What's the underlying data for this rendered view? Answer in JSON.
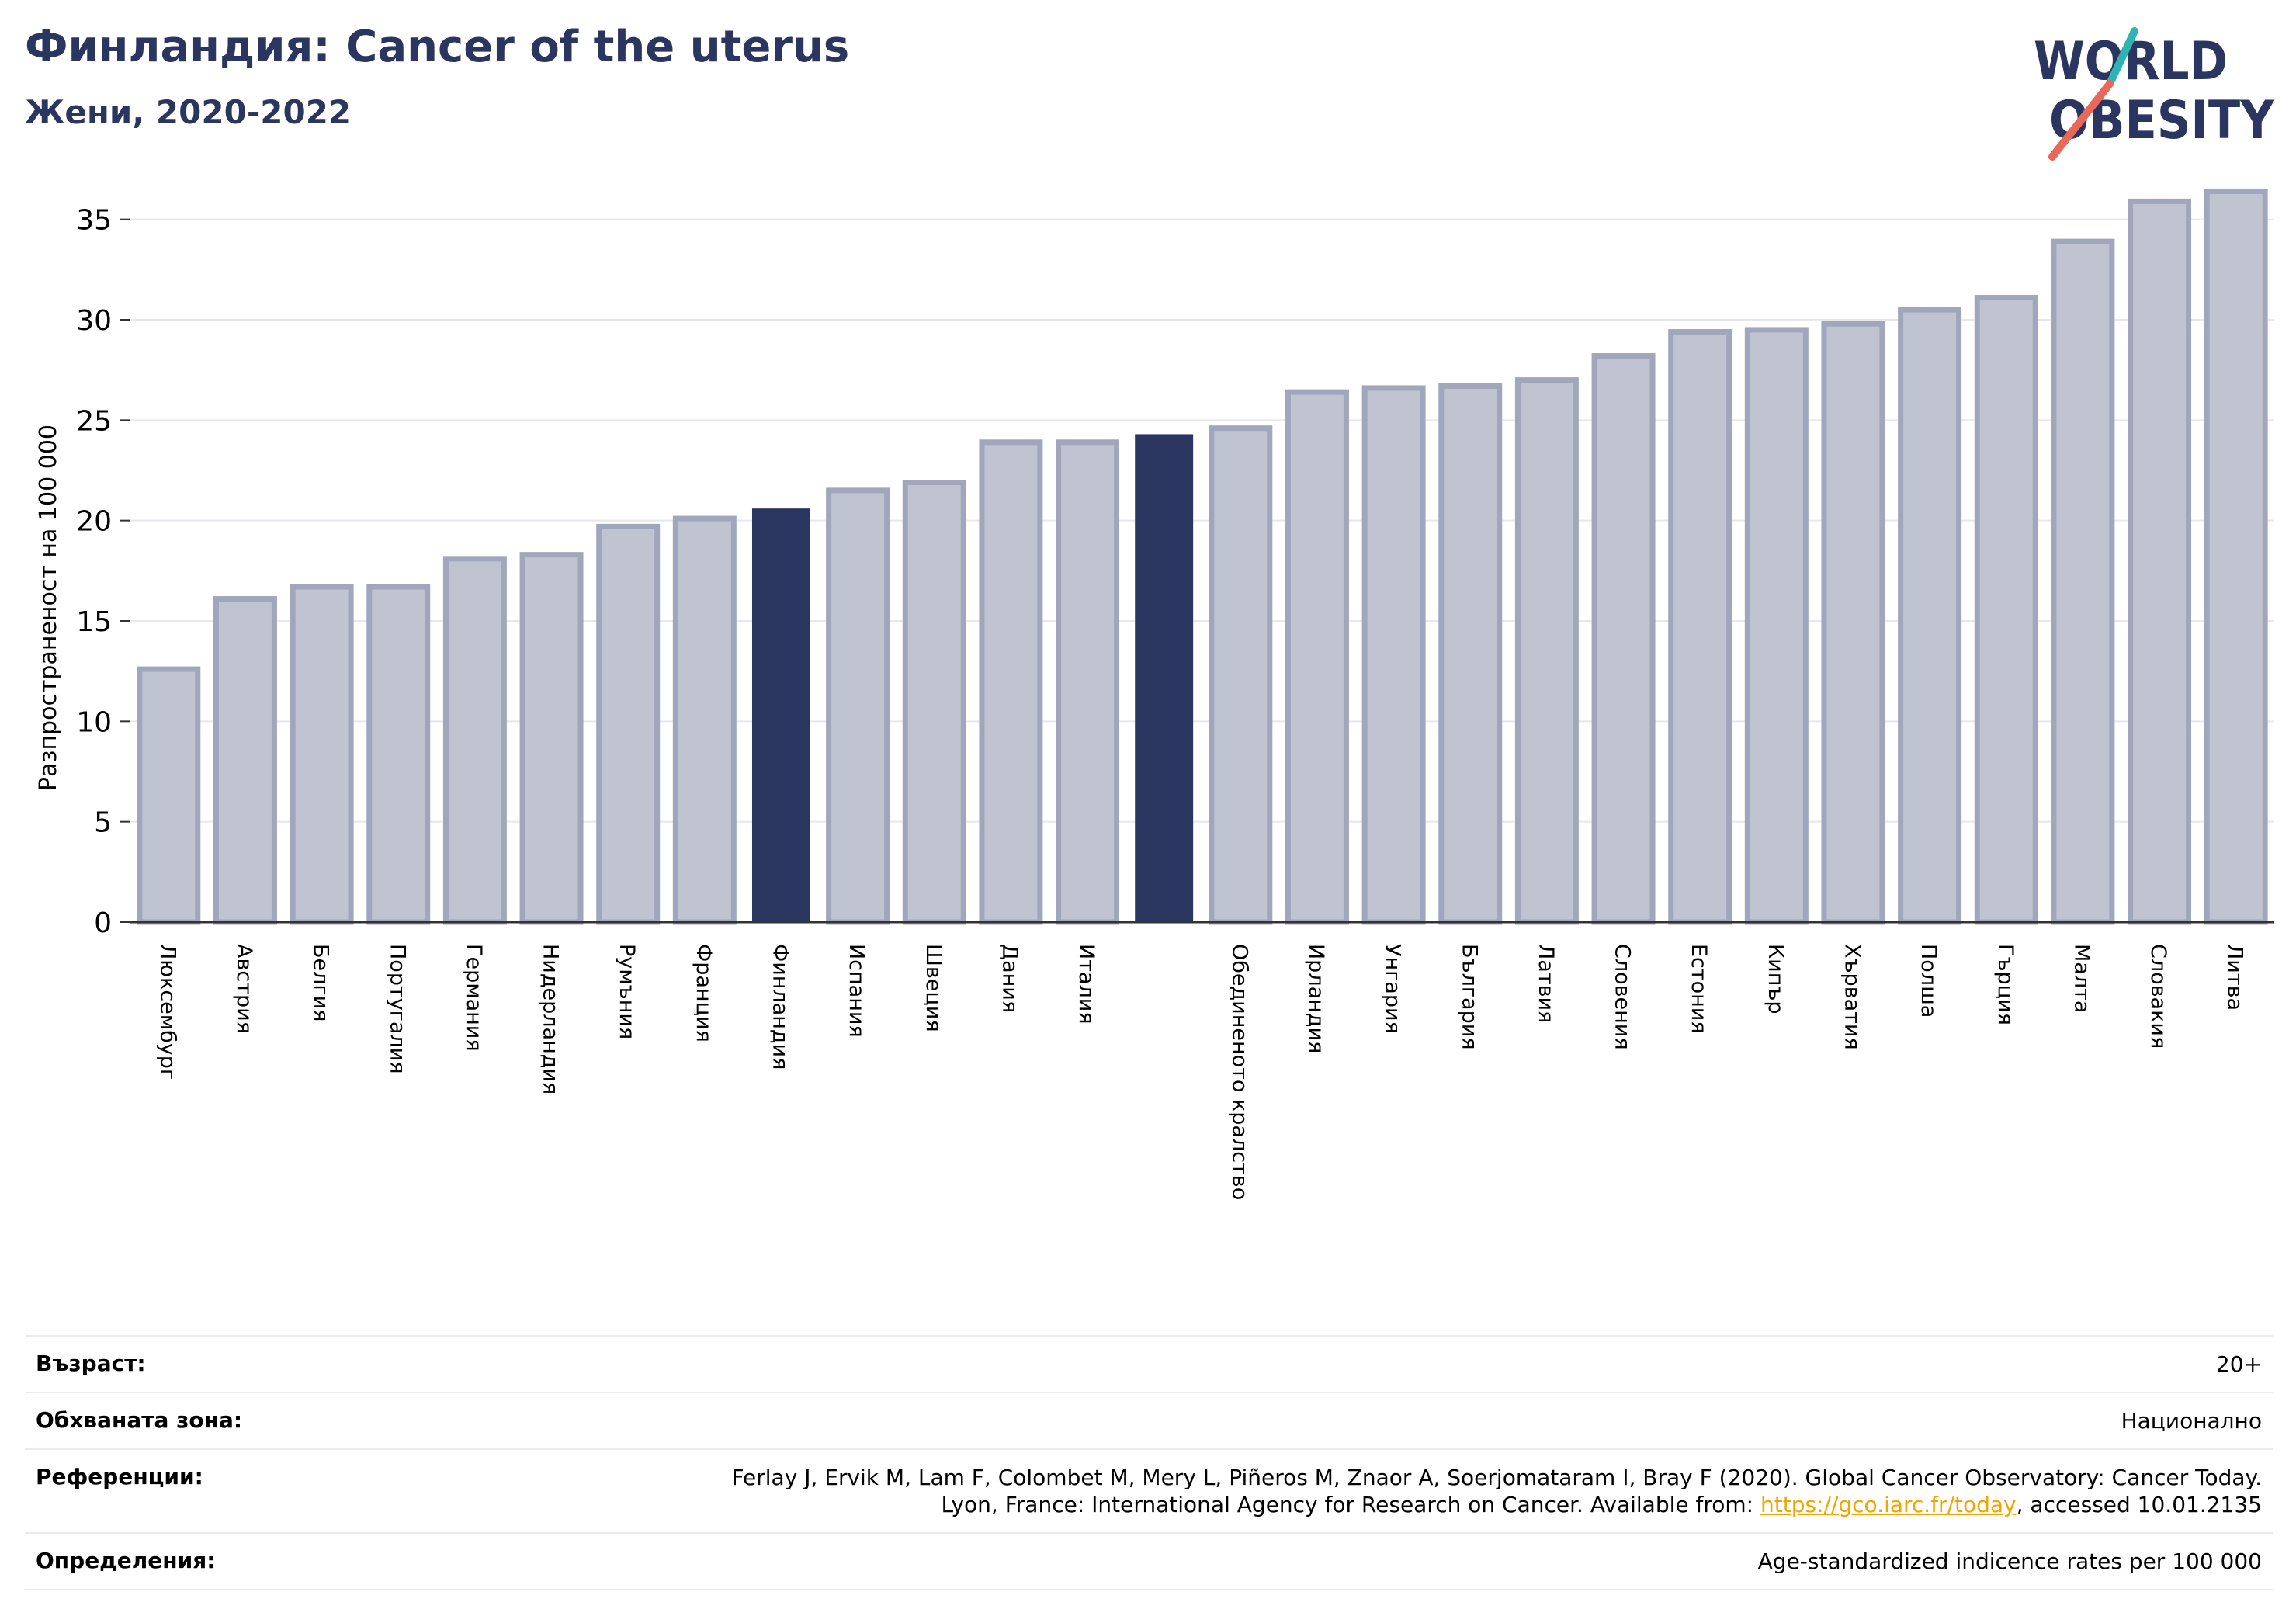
{
  "header": {
    "title": "Финландия: Cancer of the uterus",
    "subtitle": "Жени, 2020-2022"
  },
  "logo": {
    "line1": "WORLD",
    "line2": "OBESITY",
    "text_color": "#2a3660",
    "accent_teal": "#2fb3b3",
    "accent_coral": "#e8685a"
  },
  "chart_data": {
    "type": "bar",
    "ylabel": "Разпространеност  на 100 000",
    "ylim": [
      0,
      37.5
    ],
    "yticks": [
      0,
      5,
      10,
      15,
      20,
      25,
      30,
      35
    ],
    "grid": true,
    "bar_color": "#c0c3d0",
    "bar_edge_color": "#a0a6bc",
    "highlight_color": "#2a3660",
    "categories": [
      "Люксембург",
      "Австрия",
      "Белгия",
      "Португалия",
      "Германия",
      "Нидерландия",
      "Румъния",
      "Франция",
      "Финландия",
      "Испания",
      "Швеция",
      "Дания",
      "Италия",
      "",
      "Обединеното кралство",
      "Ирландия",
      "Унгария",
      "България",
      "Латвия",
      "Словения",
      "Естония",
      "Кипър",
      "Хърватия",
      "Полша",
      "Гърция",
      "Малта",
      "Словакия",
      "Литва"
    ],
    "values": [
      12.6,
      16.1,
      16.7,
      16.7,
      18.1,
      18.3,
      19.7,
      20.1,
      20.6,
      21.5,
      21.9,
      23.9,
      23.9,
      24.3,
      24.6,
      26.4,
      26.6,
      26.7,
      27.0,
      28.2,
      29.4,
      29.5,
      29.8,
      30.5,
      31.1,
      33.9,
      35.9,
      36.4
    ],
    "highlight": [
      8,
      13
    ]
  },
  "info": {
    "age_label": "Възраст:",
    "age_value": "20+",
    "area_label": "Обхваната зона:",
    "area_value": "Национално",
    "ref_label": "Референции:",
    "ref_line1": "Ferlay J, Ervik M, Lam F, Colombet M, Mery L, Piñeros M, Znaor A, Soerjomataram I, Bray F (2020). Global Cancer Observatory: Cancer Today.",
    "ref_line2_pre": "Lyon, France: International Agency for Research on Cancer. Available from: ",
    "ref_link": "https://gco.iarc.fr/today",
    "ref_line2_post": ", accessed 10.01.2135",
    "def_label": "Определения:",
    "def_value": "Age-standardized indicence rates per 100 000"
  }
}
